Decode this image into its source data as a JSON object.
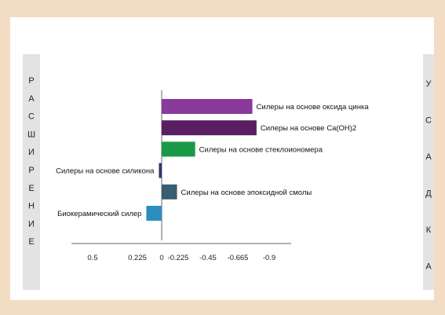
{
  "chart_data": {
    "type": "bar",
    "orientation": "horizontal",
    "x_ticks": [
      "0.5",
      "0.225",
      "0",
      "-0.225",
      "-0.45",
      "-0.665",
      "-0.9"
    ],
    "xlim": [
      0.5,
      -0.9
    ],
    "categories": [
      "Силеры на основе оксида цинка",
      "Силеры на основе Ca(OH)2",
      "Силеры на основе стеклоиономера",
      "Силеры на основе силикона",
      "Силеры на основе эпоксидной смолы",
      "Биокерамический силер"
    ],
    "values": [
      -0.65,
      -0.68,
      -0.24,
      0.02,
      -0.11,
      0.11
    ],
    "colors": [
      "#8a3a9a",
      "#5a1f62",
      "#1a9a48",
      "#2c3774",
      "#385e72",
      "#2a8fbf"
    ],
    "left_axis_label": [
      "Р",
      "А",
      "С",
      "Ш",
      "И",
      "Р",
      "Е",
      "Н",
      "И",
      "Е"
    ],
    "right_axis_label": [
      "У",
      "С",
      "А",
      "Д",
      "К",
      "А"
    ],
    "grid": false,
    "legend": "none"
  }
}
